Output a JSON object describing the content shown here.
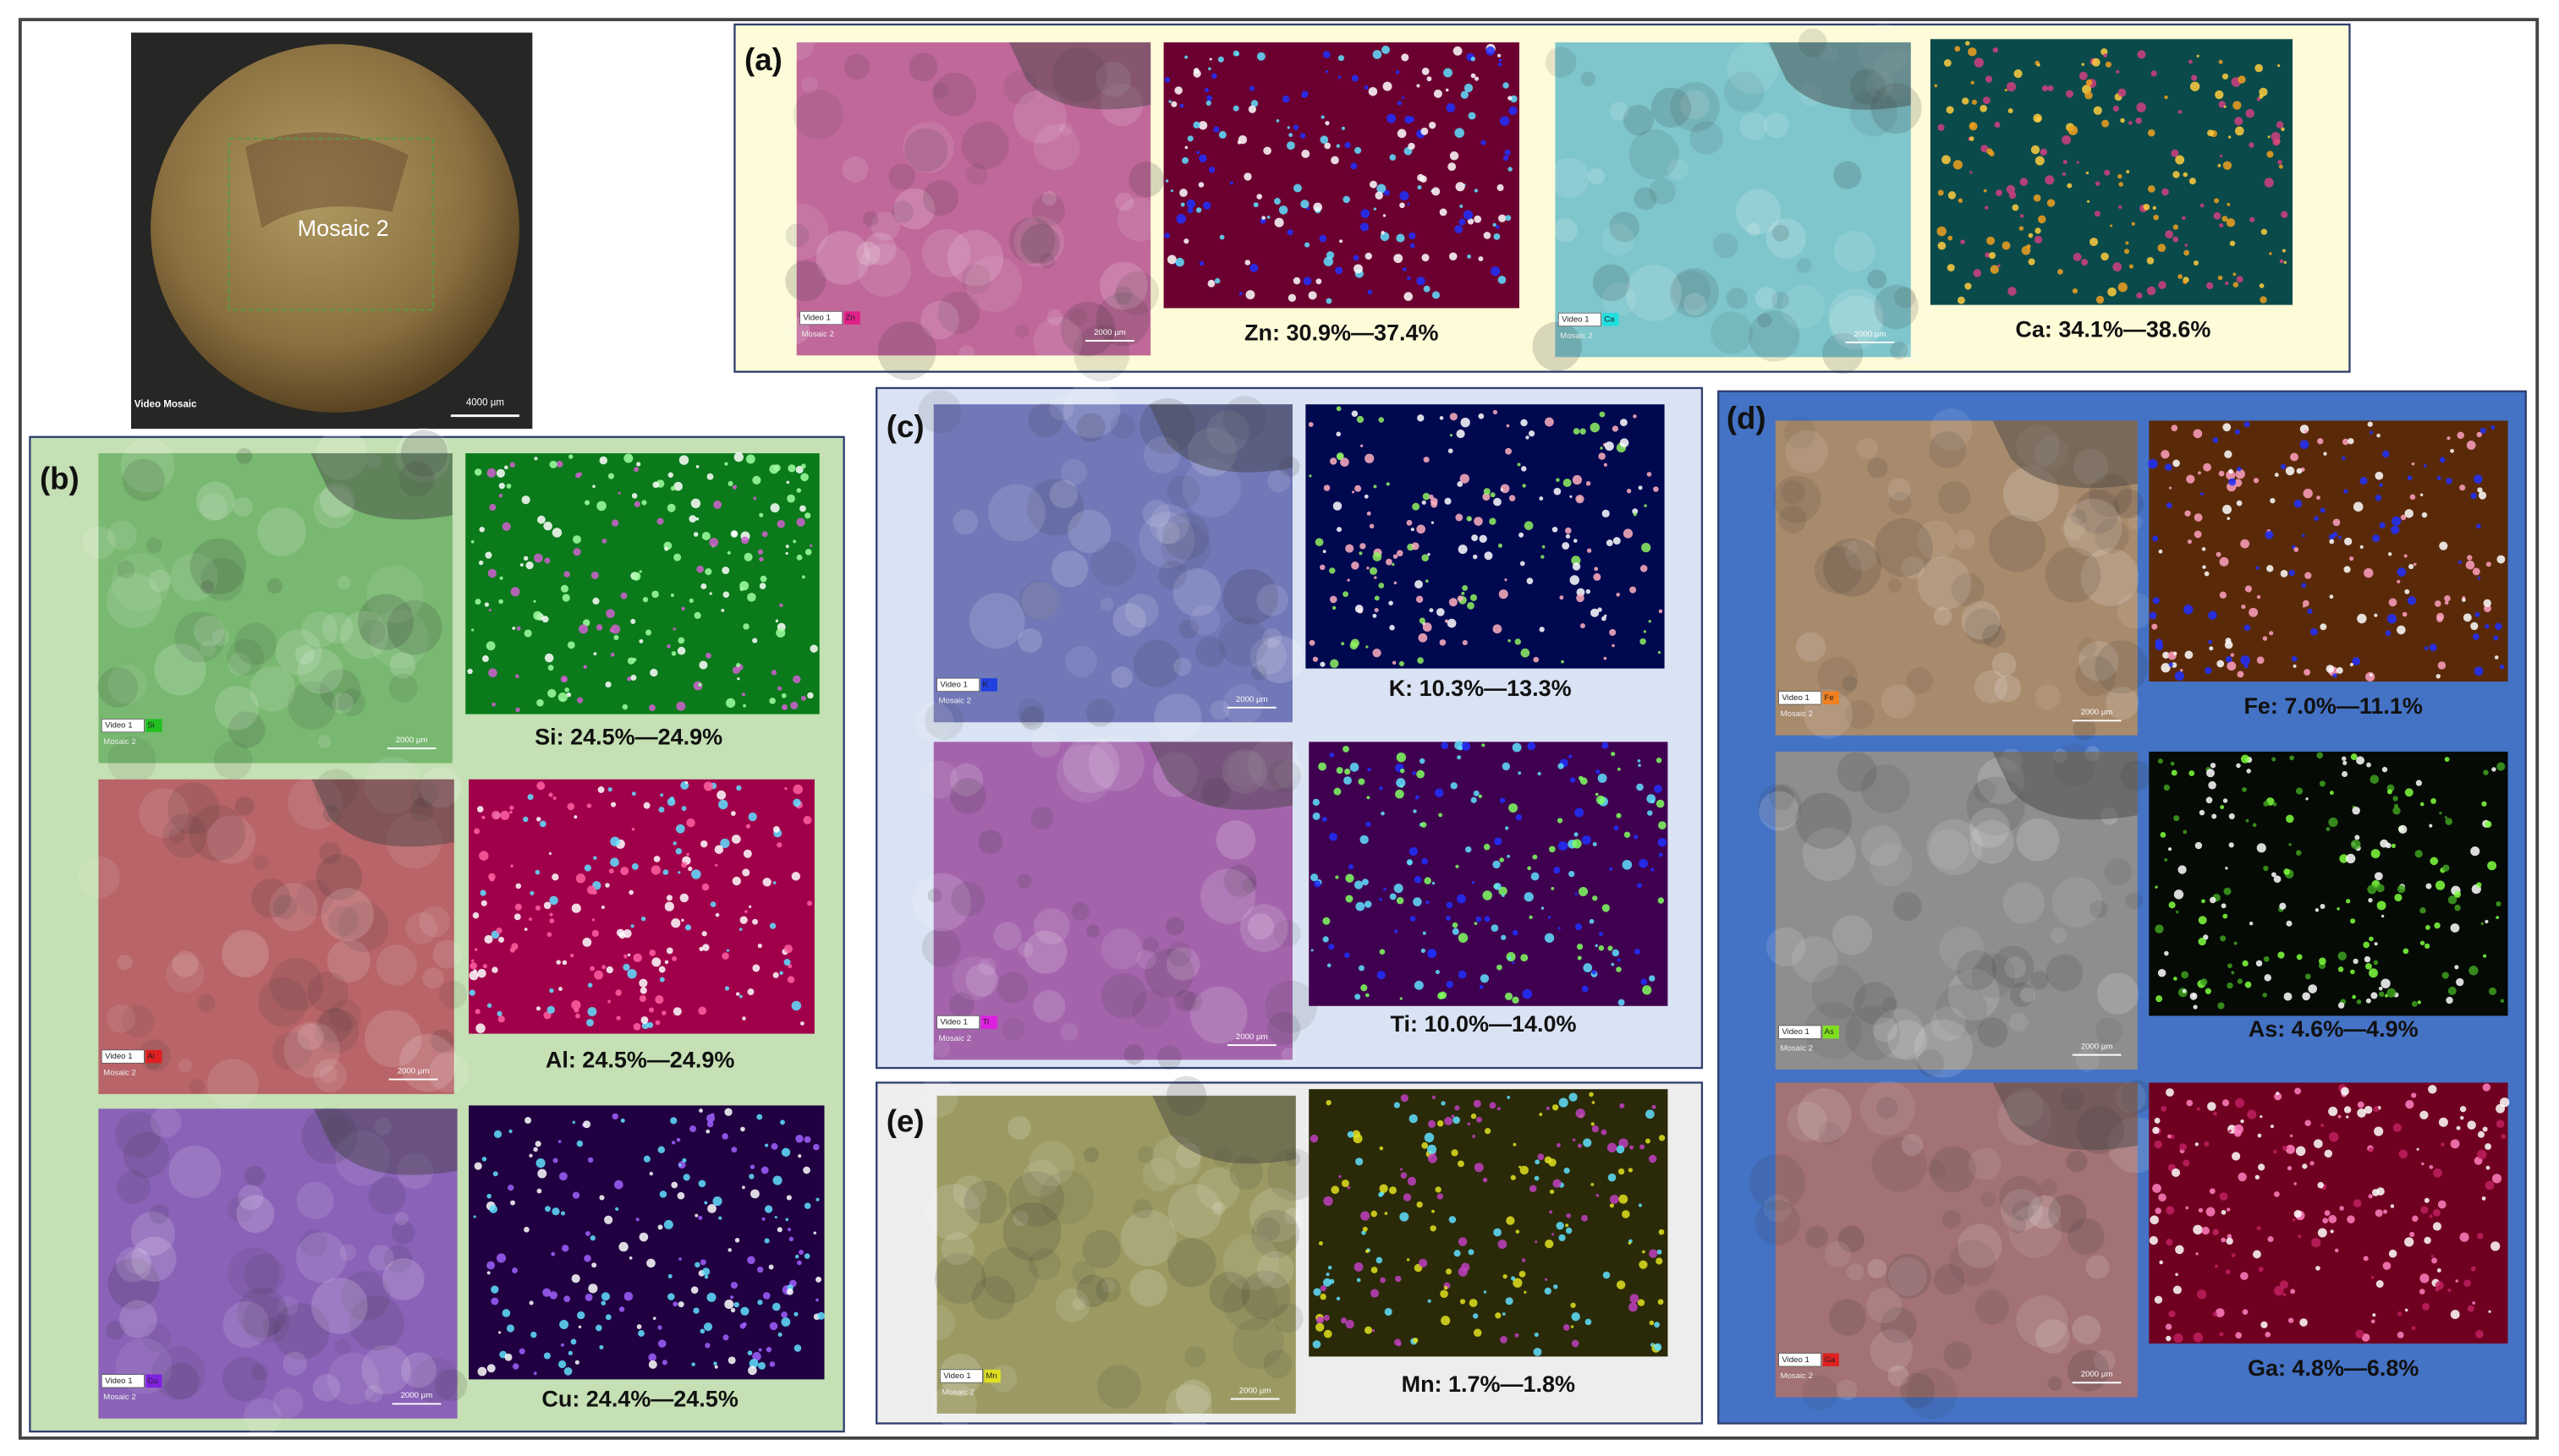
{
  "overview": {
    "label": "Mosaic 2",
    "caption": "Video Mosaic",
    "scale": "4000 µm"
  },
  "image_labels": {
    "video": "Video 1",
    "mosaic": "Mosaic 2",
    "scale": "2000 µm"
  },
  "panels": [
    {
      "label": "(a)",
      "maps": [
        {
          "element": "Zn",
          "caption": "Zn: 30.9%—37.4%"
        },
        {
          "element": "Ca",
          "caption": "Ca: 34.1%—38.6%"
        }
      ]
    },
    {
      "label": "(b)",
      "maps": [
        {
          "element": "Si",
          "caption": "Si: 24.5%—24.9%"
        },
        {
          "element": "Al",
          "caption": "Al: 24.5%—24.9%"
        },
        {
          "element": "Cu",
          "caption": "Cu: 24.4%—24.5%"
        }
      ]
    },
    {
      "label": "(c)",
      "maps": [
        {
          "element": "K",
          "caption": "K: 10.3%—13.3%"
        },
        {
          "element": "Ti",
          "caption": "Ti: 10.0%—14.0%"
        }
      ]
    },
    {
      "label": "(d)",
      "maps": [
        {
          "element": "Fe",
          "caption": "Fe: 7.0%—11.1%"
        },
        {
          "element": "As",
          "caption": "As: 4.6%—4.9%"
        },
        {
          "element": "Ga",
          "caption": "Ga: 4.8%—6.8%"
        }
      ]
    },
    {
      "label": "(e)",
      "maps": [
        {
          "element": "Mn",
          "caption": "Mn: 1.7%—1.8%"
        }
      ]
    }
  ]
}
